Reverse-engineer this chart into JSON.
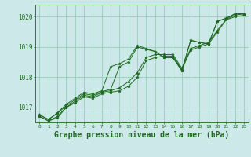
{
  "background_color": "#cce8e8",
  "grid_color": "#99ccbb",
  "line_color": "#1a6b1a",
  "marker_color": "#1a6b1a",
  "xlabel": "Graphe pression niveau de la mer (hPa)",
  "xlabel_fontsize": 7,
  "xlim": [
    -0.5,
    23.5
  ],
  "ylim": [
    1016.5,
    1020.4
  ],
  "yticks": [
    1017,
    1018,
    1019,
    1020
  ],
  "xticks": [
    0,
    1,
    2,
    3,
    4,
    5,
    6,
    7,
    8,
    9,
    10,
    11,
    12,
    13,
    14,
    15,
    16,
    17,
    18,
    19,
    20,
    21,
    22,
    23
  ],
  "series": [
    [
      1016.7,
      1016.55,
      1016.65,
      1017.0,
      1017.15,
      1017.35,
      1017.3,
      1017.45,
      1017.5,
      1017.55,
      1017.7,
      1018.0,
      1018.55,
      1018.65,
      1018.7,
      1018.7,
      1018.25,
      1018.9,
      1019.0,
      1019.1,
      1019.5,
      1019.9,
      1020.0,
      1020.05
    ],
    [
      1016.7,
      1016.55,
      1016.7,
      1017.0,
      1017.2,
      1017.4,
      1017.35,
      1017.5,
      1017.55,
      1017.65,
      1017.85,
      1018.15,
      1018.65,
      1018.75,
      1018.75,
      1018.75,
      1018.3,
      1018.95,
      1019.05,
      1019.15,
      1019.55,
      1019.92,
      1020.05,
      1020.1
    ],
    [
      1016.75,
      1016.6,
      1016.8,
      1017.05,
      1017.25,
      1017.45,
      1017.4,
      1017.52,
      1017.6,
      1018.35,
      1018.5,
      1019.0,
      1018.92,
      1018.85,
      1018.65,
      1018.65,
      1018.22,
      1019.22,
      1019.15,
      1019.1,
      1019.85,
      1019.95,
      1020.1,
      1020.1
    ],
    [
      1016.75,
      1016.6,
      1016.82,
      1017.1,
      1017.3,
      1017.5,
      1017.45,
      1017.55,
      1018.35,
      1018.45,
      1018.6,
      1019.05,
      1018.95,
      1018.85,
      1018.65,
      1018.65,
      1018.22,
      1019.22,
      1019.15,
      1019.1,
      1019.85,
      1019.95,
      1020.1,
      1020.1
    ]
  ]
}
